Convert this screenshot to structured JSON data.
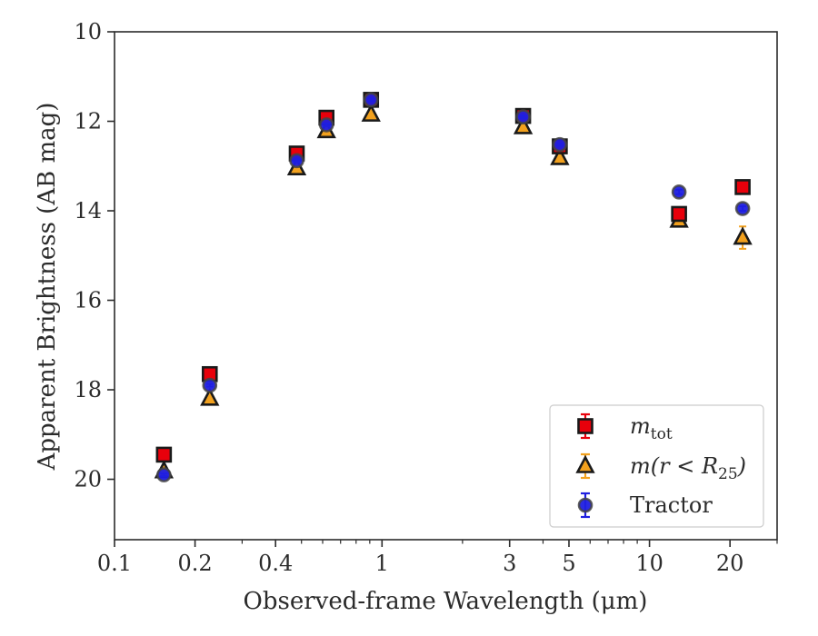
{
  "chart_data": {
    "type": "scatter",
    "title": "",
    "xlabel": "Observed-frame Wavelength (μm)",
    "ylabel": "Apparent Brightness (AB mag)",
    "x_scale": "log",
    "xlim": [
      0.1,
      30
    ],
    "ylim": [
      21.35,
      10
    ],
    "y_inverted": true,
    "grid": false,
    "legend_position": "lower-right",
    "x_ticks": [
      {
        "value": 0.1,
        "label": "0.1"
      },
      {
        "value": 0.2,
        "label": "0.2"
      },
      {
        "value": 0.4,
        "label": "0.4"
      },
      {
        "value": 1,
        "label": "1"
      },
      {
        "value": 3,
        "label": "3"
      },
      {
        "value": 5,
        "label": "5"
      },
      {
        "value": 10,
        "label": "10"
      },
      {
        "value": 20,
        "label": "20"
      }
    ],
    "y_ticks": [
      {
        "value": 10,
        "label": "10"
      },
      {
        "value": 12,
        "label": "12"
      },
      {
        "value": 14,
        "label": "14"
      },
      {
        "value": 16,
        "label": "16"
      },
      {
        "value": 18,
        "label": "18"
      },
      {
        "value": 20,
        "label": "20"
      }
    ],
    "series": [
      {
        "name": "m_tot",
        "legend_label": {
          "base": "m",
          "sub": "tot"
        },
        "marker": "square",
        "color": "#e8000b",
        "edge_color": "#1a1a1a",
        "x": [
          0.153,
          0.227,
          0.48,
          0.62,
          0.91,
          3.37,
          4.62,
          12.9,
          22.3
        ],
        "y": [
          19.45,
          17.65,
          12.72,
          11.92,
          11.52,
          11.88,
          12.56,
          14.07,
          13.47
        ],
        "yerr": [
          0.04,
          0.04,
          0.04,
          0.04,
          0.04,
          0.04,
          0.04,
          0.1,
          0.08
        ]
      },
      {
        "name": "m(r < R25)",
        "legend_label": {
          "base": "m(r < R",
          "sub": "25",
          "tail": ")"
        },
        "marker": "triangle",
        "color": "#f2a11e",
        "edge_color": "#1a1a1a",
        "x": [
          0.153,
          0.227,
          0.48,
          0.62,
          0.91,
          3.37,
          4.62,
          12.9,
          22.3
        ],
        "y": [
          19.82,
          18.2,
          13.05,
          12.22,
          11.85,
          12.13,
          12.82,
          14.22,
          14.6
        ],
        "yerr": [
          0.04,
          0.04,
          0.04,
          0.04,
          0.04,
          0.04,
          0.04,
          0.1,
          0.25
        ]
      },
      {
        "name": "Tractor",
        "legend_label": {
          "base": "Tractor"
        },
        "marker": "circle",
        "color": "#1f1fe0",
        "edge_color": "#444444",
        "x": [
          0.153,
          0.227,
          0.48,
          0.62,
          0.91,
          3.37,
          4.62,
          12.9,
          22.3
        ],
        "y": [
          19.9,
          17.9,
          12.88,
          12.08,
          11.52,
          11.9,
          12.52,
          13.58,
          13.95
        ],
        "yerr": [
          0.03,
          0.03,
          0.03,
          0.03,
          0.03,
          0.03,
          0.03,
          0.05,
          0.05
        ]
      }
    ]
  }
}
